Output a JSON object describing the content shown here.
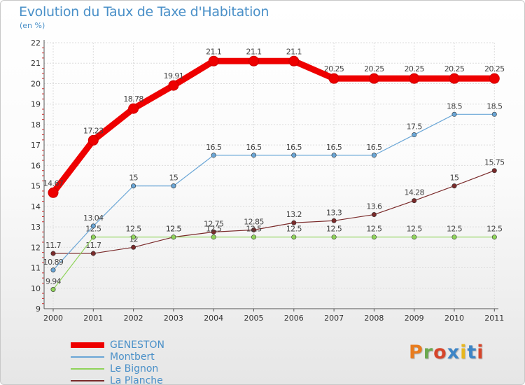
{
  "title": "Evolution du Taux de Taxe d'Habitation",
  "subtitle": "(en %)",
  "brand": {
    "text": "Proxiti",
    "letter_colors": [
      "#e87c1e",
      "#6aa84f",
      "#d6452a",
      "#3d85c6",
      "#e8b71e",
      "#3d85c6",
      "#d6452a"
    ]
  },
  "chart_data": {
    "type": "line",
    "x": [
      "2000",
      "2001",
      "2002",
      "2003",
      "2004",
      "2005",
      "2006",
      "2007",
      "2008",
      "2009",
      "2010",
      "2011"
    ],
    "ylim": [
      9,
      22
    ],
    "yticks": [
      9,
      10,
      11,
      12,
      13,
      14,
      15,
      16,
      17,
      18,
      19,
      20,
      21,
      22
    ],
    "grid": true,
    "legend_position": "bottom-left",
    "series": [
      {
        "name": "GENESTON",
        "color": "#ee0000",
        "values": [
          14.67,
          17.23,
          18.78,
          19.91,
          21.1,
          21.1,
          21.1,
          20.25,
          20.25,
          20.25,
          20.25,
          20.25
        ],
        "labels": [
          "14.67",
          "17.23",
          "18.78",
          "19.91",
          "21.1",
          "21.1",
          "21.1",
          "20.25",
          "20.25",
          "20.25",
          "20.25",
          "20.25"
        ]
      },
      {
        "name": "Montbert",
        "color": "#6aa6d6",
        "values": [
          10.89,
          13.04,
          15,
          15,
          16.5,
          16.5,
          16.5,
          16.5,
          16.5,
          17.5,
          18.5,
          18.5
        ],
        "labels": [
          "10.89",
          "13.04",
          "15",
          "15",
          "16.5",
          "16.5",
          "16.5",
          "16.5",
          "16.5",
          "17.5",
          "18.5",
          "18.5"
        ]
      },
      {
        "name": "Le Bignon",
        "color": "#8fd35a",
        "values": [
          9.94,
          12.5,
          12.5,
          12.5,
          12.5,
          12.5,
          12.5,
          12.5,
          12.5,
          12.5,
          12.5,
          12.5
        ],
        "labels": [
          "9.94",
          "12.5",
          "12.5",
          "12.5",
          "12.5",
          "12.5",
          "12.5",
          "12.5",
          "12.5",
          "12.5",
          "12.5",
          "12.5"
        ]
      },
      {
        "name": "La Planche",
        "color": "#7a2a2a",
        "values": [
          11.7,
          11.7,
          12,
          12.5,
          12.75,
          12.85,
          13.2,
          13.3,
          13.6,
          14.28,
          15,
          15.75
        ],
        "labels": [
          "11.7",
          "11.7",
          "12",
          "12.5",
          "12.75",
          "12.85",
          "13.2",
          "13.3",
          "13.6",
          "14.28",
          "15",
          "15.75"
        ]
      }
    ]
  }
}
